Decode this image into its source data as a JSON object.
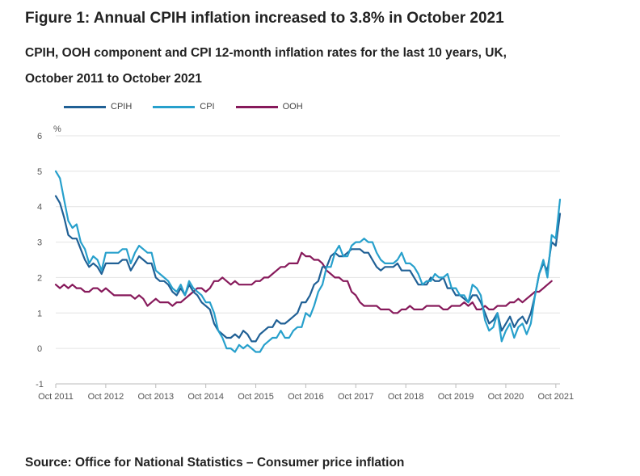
{
  "title": "Figure 1: Annual CPIH inflation increased to 3.8% in October 2021",
  "subtitle": "CPIH, OOH component and CPI 12-month inflation rates for the last 10 years, UK, October 2011 to October 2021",
  "source": "Source: Office for National Statistics – Consumer price inflation",
  "colors": {
    "CPIH": "#206095",
    "CPI": "#27a0cc",
    "OOH": "#871a5b",
    "grid": "#e3e3e3",
    "axis": "#bbbbbb"
  },
  "chart_data": {
    "type": "line",
    "ylabel": "%",
    "ylim": [
      -1,
      6
    ],
    "yticks": [
      -1,
      0,
      1,
      2,
      3,
      4,
      5,
      6
    ],
    "xtick_labels": [
      "Oct 2011",
      "Oct 2012",
      "Oct 2013",
      "Oct 2014",
      "Oct 2015",
      "Oct 2016",
      "Oct 2017",
      "Oct 2018",
      "Oct 2019",
      "Oct 2020",
      "Oct 2021"
    ],
    "x_start": "Oct 2011",
    "x_end": "Oct 2021",
    "legend_position": "top-left",
    "series": [
      {
        "name": "CPIH",
        "color_key": "CPIH",
        "values": [
          4.3,
          4.1,
          3.7,
          3.2,
          3.1,
          3.1,
          2.8,
          2.5,
          2.3,
          2.4,
          2.3,
          2.1,
          2.4,
          2.4,
          2.4,
          2.4,
          2.5,
          2.5,
          2.2,
          2.4,
          2.6,
          2.5,
          2.4,
          2.4,
          2.0,
          1.9,
          1.9,
          1.8,
          1.6,
          1.5,
          1.7,
          1.5,
          1.8,
          1.6,
          1.5,
          1.3,
          1.2,
          1.1,
          0.7,
          0.5,
          0.4,
          0.3,
          0.3,
          0.4,
          0.3,
          0.5,
          0.4,
          0.2,
          0.2,
          0.4,
          0.5,
          0.6,
          0.6,
          0.8,
          0.7,
          0.7,
          0.8,
          0.9,
          1.0,
          1.3,
          1.3,
          1.5,
          1.8,
          1.9,
          2.3,
          2.3,
          2.6,
          2.7,
          2.6,
          2.6,
          2.7,
          2.8,
          2.8,
          2.8,
          2.7,
          2.7,
          2.5,
          2.3,
          2.2,
          2.3,
          2.3,
          2.3,
          2.4,
          2.2,
          2.2,
          2.2,
          2.0,
          1.8,
          1.8,
          1.8,
          2.0,
          1.9,
          1.9,
          2.0,
          1.7,
          1.7,
          1.5,
          1.5,
          1.4,
          1.3,
          1.5,
          1.5,
          1.3,
          1.0,
          0.7,
          0.8,
          1.0,
          0.5,
          0.7,
          0.9,
          0.6,
          0.8,
          0.9,
          0.7,
          1.0,
          1.5,
          2.1,
          2.4,
          2.2,
          3.0,
          2.9,
          3.8
        ]
      },
      {
        "name": "CPI",
        "color_key": "CPI",
        "values": [
          5.0,
          4.8,
          4.2,
          3.6,
          3.4,
          3.5,
          3.0,
          2.8,
          2.4,
          2.6,
          2.5,
          2.2,
          2.7,
          2.7,
          2.7,
          2.7,
          2.8,
          2.8,
          2.4,
          2.7,
          2.9,
          2.8,
          2.7,
          2.7,
          2.2,
          2.1,
          2.0,
          1.9,
          1.7,
          1.6,
          1.8,
          1.5,
          1.9,
          1.7,
          1.6,
          1.5,
          1.3,
          1.3,
          1.0,
          0.5,
          0.3,
          0.0,
          0.0,
          -0.1,
          0.1,
          0.0,
          0.1,
          0.0,
          -0.1,
          -0.1,
          0.1,
          0.2,
          0.3,
          0.3,
          0.5,
          0.3,
          0.3,
          0.5,
          0.6,
          0.6,
          1.0,
          0.9,
          1.2,
          1.6,
          1.8,
          2.3,
          2.3,
          2.7,
          2.9,
          2.6,
          2.6,
          2.9,
          3.0,
          3.0,
          3.1,
          3.0,
          3.0,
          2.7,
          2.5,
          2.4,
          2.4,
          2.4,
          2.5,
          2.7,
          2.4,
          2.4,
          2.3,
          2.1,
          1.8,
          1.9,
          1.9,
          2.1,
          2.0,
          2.0,
          2.1,
          1.7,
          1.7,
          1.5,
          1.5,
          1.3,
          1.8,
          1.7,
          1.5,
          0.8,
          0.5,
          0.6,
          1.0,
          0.2,
          0.5,
          0.7,
          0.3,
          0.6,
          0.7,
          0.4,
          0.7,
          1.5,
          2.1,
          2.5,
          2.0,
          3.2,
          3.1,
          4.2
        ]
      },
      {
        "name": "OOH",
        "color_key": "OOH",
        "values": [
          1.8,
          1.7,
          1.8,
          1.7,
          1.8,
          1.7,
          1.7,
          1.6,
          1.6,
          1.7,
          1.7,
          1.6,
          1.7,
          1.6,
          1.5,
          1.5,
          1.5,
          1.5,
          1.5,
          1.4,
          1.5,
          1.4,
          1.2,
          1.3,
          1.4,
          1.3,
          1.3,
          1.3,
          1.2,
          1.3,
          1.3,
          1.4,
          1.5,
          1.6,
          1.7,
          1.7,
          1.6,
          1.7,
          1.9,
          1.9,
          2.0,
          1.9,
          1.8,
          1.9,
          1.8,
          1.8,
          1.8,
          1.8,
          1.9,
          1.9,
          2.0,
          2.0,
          2.1,
          2.2,
          2.3,
          2.3,
          2.4,
          2.4,
          2.4,
          2.7,
          2.6,
          2.6,
          2.5,
          2.5,
          2.4,
          2.2,
          2.1,
          2.0,
          2.0,
          1.9,
          1.9,
          1.6,
          1.5,
          1.3,
          1.2,
          1.2,
          1.2,
          1.2,
          1.1,
          1.1,
          1.1,
          1.0,
          1.0,
          1.1,
          1.1,
          1.2,
          1.1,
          1.1,
          1.1,
          1.2,
          1.2,
          1.2,
          1.2,
          1.1,
          1.1,
          1.2,
          1.2,
          1.2,
          1.3,
          1.2,
          1.3,
          1.1,
          1.1,
          1.2,
          1.1,
          1.1,
          1.2,
          1.2,
          1.2,
          1.3,
          1.3,
          1.4,
          1.3,
          1.4,
          1.5,
          1.6,
          1.6,
          1.7,
          1.8,
          1.9
        ]
      }
    ]
  }
}
